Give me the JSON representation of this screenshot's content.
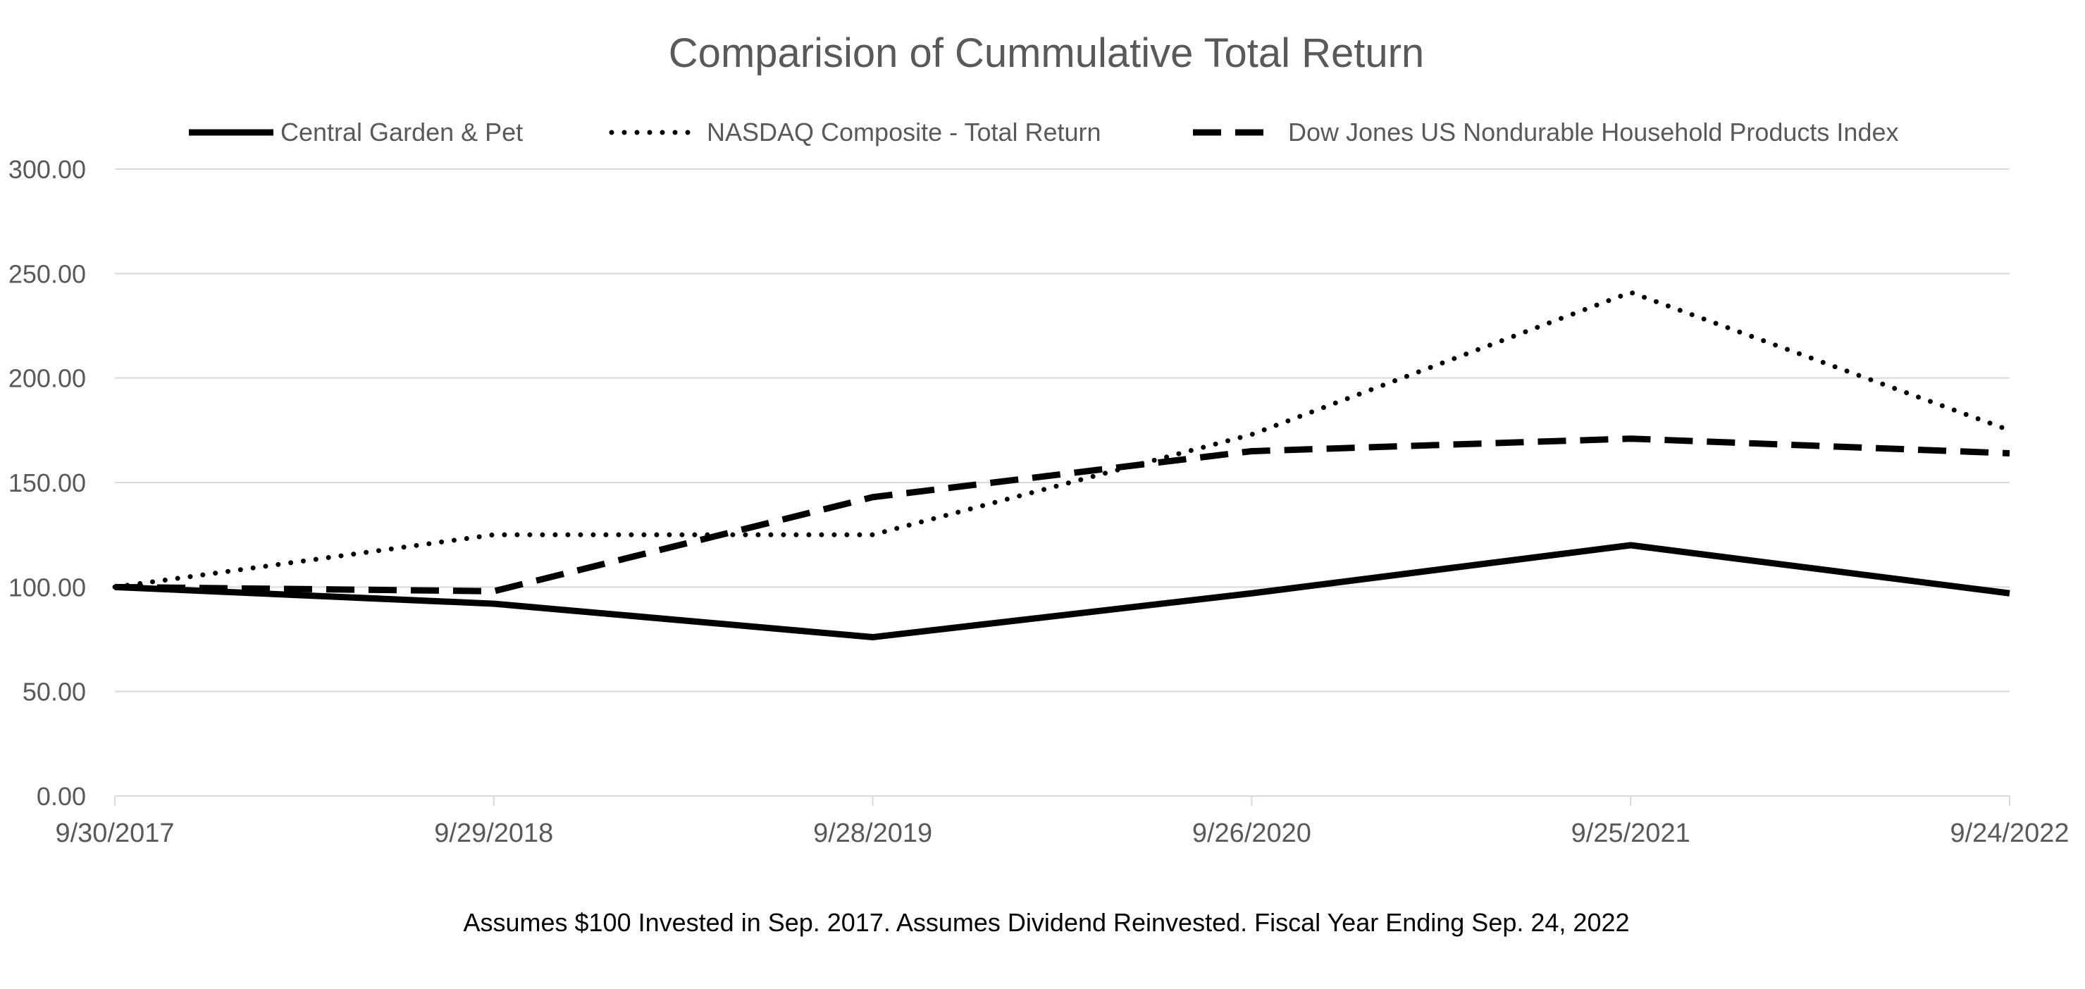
{
  "chart_data": {
    "type": "line",
    "title": "Comparision of Cummulative Total Return",
    "categories": [
      "9/30/2017",
      "9/29/2018",
      "9/28/2019",
      "9/26/2020",
      "9/25/2021",
      "9/24/2022"
    ],
    "y_tick_labels": [
      "0.00",
      "50.00",
      "100.00",
      "150.00",
      "200.00",
      "250.00",
      "300.00"
    ],
    "ylim": [
      0,
      300
    ],
    "grid": true,
    "legend_position": "top",
    "series": [
      {
        "name": "Central Garden & Pet",
        "style": "solid",
        "color": "#000000",
        "values": [
          100,
          92,
          76,
          97,
          120,
          97
        ]
      },
      {
        "name": "NASDAQ Composite - Total Return",
        "style": "dotted",
        "color": "#000000",
        "values": [
          100,
          125,
          125,
          173,
          241,
          175
        ]
      },
      {
        "name": "Dow Jones US Nondurable Household Products Index",
        "style": "dashed",
        "color": "#000000",
        "values": [
          100,
          98,
          143,
          165,
          171,
          164
        ]
      }
    ],
    "footnote": "Assumes $100 Invested in Sep. 2017. Assumes Dividend Reinvested. Fiscal Year Ending Sep. 24, 2022"
  }
}
